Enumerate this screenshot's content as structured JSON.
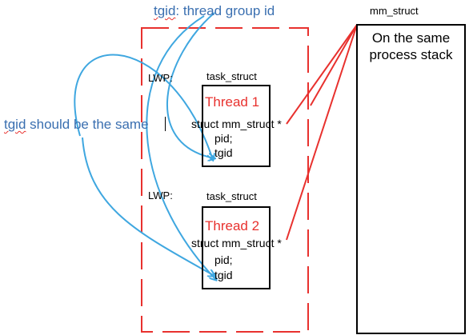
{
  "notes": {
    "tgid_title_word": "tgid",
    "tgid_title_rest": ": thread group id",
    "tgid_same_word": "tgid",
    "tgid_same_rest": " should be the same"
  },
  "mm_struct": {
    "label": "mm_struct",
    "line1": "On the same",
    "line2": "process stack"
  },
  "threads": [
    {
      "lwp_label": "LWP:",
      "task_label": "task_struct",
      "title": "Thread 1",
      "field_mm": "struct mm_struct *",
      "field_pid": "pid;",
      "field_tgid": "tgid"
    },
    {
      "lwp_label": "LWP:",
      "task_label": "task_struct",
      "title": "Thread 2",
      "field_mm": "struct mm_struct *",
      "field_pid": "pid;",
      "field_tgid": "tgid"
    }
  ],
  "colors": {
    "note_blue": "#3a6fb0",
    "arrow_blue": "#3fa7e0",
    "dash_red": "#e8312e",
    "pointer_red": "#e8312e"
  }
}
